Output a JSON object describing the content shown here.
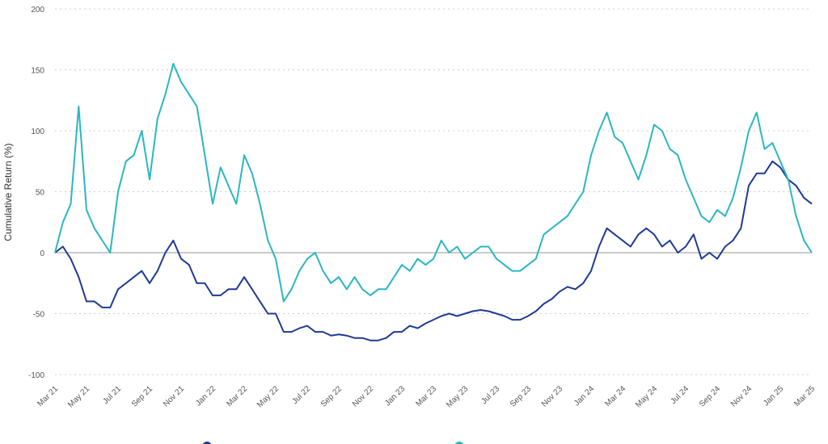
{
  "chart_data": {
    "type": "line",
    "title": "",
    "xlabel": "",
    "ylabel": "Cumulative Return (%)",
    "ylim": [
      -100,
      200
    ],
    "yticks": [
      200,
      150,
      100,
      50,
      0,
      -50,
      -100
    ],
    "grid": true,
    "x_unit": "months since Mar 21",
    "xlim": [
      0,
      48
    ],
    "xtick_labels": [
      "Mar 21",
      "May 21",
      "Jul 21",
      "Sep 21",
      "Nov 21",
      "Jan 22",
      "Mar 22",
      "May 22",
      "Jul 22",
      "Sep 22",
      "Nov 22",
      "Jan 23",
      "Mar 23",
      "May 23",
      "Jul 23",
      "Sep 23",
      "Nov 23",
      "Jan 24",
      "Mar 24",
      "May 24",
      "Jul 24",
      "Sep 24",
      "Nov 24",
      "Jan 25",
      "Mar 25"
    ],
    "series": [
      {
        "name": "",
        "color": "#1f3a93",
        "values": [
          0,
          5,
          -5,
          -20,
          -40,
          -40,
          -45,
          -45,
          -30,
          -25,
          -20,
          -15,
          -25,
          -15,
          0,
          10,
          -5,
          -10,
          -25,
          -25,
          -35,
          -35,
          -30,
          -30,
          -20,
          -30,
          -40,
          -50,
          -50,
          -65,
          -65,
          -62,
          -60,
          -65,
          -65,
          -68,
          -67,
          -68,
          -70,
          -70,
          -72,
          -72,
          -70,
          -65,
          -65,
          -60,
          -62,
          -58,
          -55,
          -52,
          -50,
          -52,
          -50,
          -48,
          -47,
          -48,
          -50,
          -52,
          -55,
          -55,
          -52,
          -48,
          -42,
          -38,
          -32,
          -28,
          -30,
          -25,
          -15,
          5,
          20,
          15,
          10,
          5,
          15,
          20,
          15,
          5,
          10,
          0,
          5,
          15,
          -5,
          0,
          -5,
          5,
          10,
          20,
          55,
          65,
          65,
          75,
          70,
          60,
          55,
          45,
          40
        ]
      },
      {
        "name": "",
        "color": "#2ab7c0",
        "values": [
          0,
          25,
          40,
          120,
          35,
          20,
          10,
          0,
          50,
          75,
          80,
          100,
          60,
          110,
          130,
          155,
          140,
          130,
          120,
          80,
          40,
          70,
          55,
          40,
          80,
          65,
          40,
          10,
          -5,
          -40,
          -30,
          -15,
          -5,
          0,
          -15,
          -25,
          -20,
          -30,
          -20,
          -30,
          -35,
          -30,
          -30,
          -20,
          -10,
          -15,
          -5,
          -10,
          -5,
          10,
          0,
          5,
          -5,
          0,
          5,
          5,
          -5,
          -10,
          -15,
          -15,
          -10,
          -5,
          15,
          20,
          25,
          30,
          40,
          50,
          80,
          100,
          115,
          95,
          90,
          75,
          60,
          80,
          105,
          100,
          85,
          80,
          60,
          45,
          30,
          25,
          35,
          30,
          45,
          70,
          100,
          115,
          85,
          90,
          75,
          60,
          30,
          10,
          0
        ]
      }
    ]
  }
}
